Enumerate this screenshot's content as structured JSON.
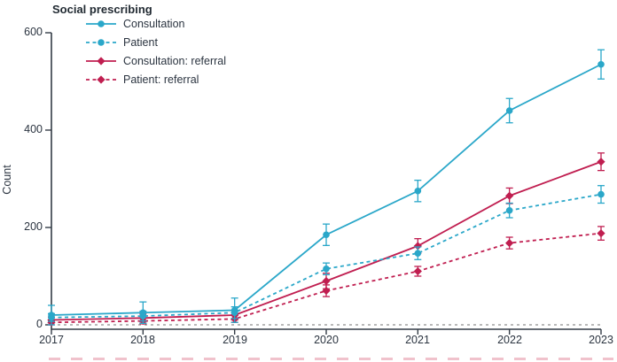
{
  "title": "Social prescribing",
  "axes": {
    "ylabel": "Count",
    "yticks": [
      "0",
      "200",
      "400",
      "600"
    ],
    "xticks": [
      "2017",
      "2018",
      "2019",
      "2020",
      "2021",
      "2022",
      "2023"
    ]
  },
  "colors": {
    "cyan": "#2aa7c9",
    "crimson": "#c01e50",
    "axis": "#343c46",
    "zero_line": "#8f8f8f",
    "text": "#2b3440"
  },
  "chart_data": {
    "type": "line",
    "title": "Social prescribing",
    "xlabel": "",
    "ylabel": "Count",
    "x": [
      2017,
      2018,
      2019,
      2020,
      2021,
      2022,
      2023
    ],
    "ylim": [
      0,
      600
    ],
    "yticks": [
      0,
      200,
      400,
      600
    ],
    "grid": false,
    "legend_position": "top-left",
    "zero_reference_line": true,
    "error_bars": true,
    "series": [
      {
        "name": "Consultation",
        "color": "#2aa7c9",
        "style": "solid",
        "marker": "circle",
        "values": [
          20,
          25,
          30,
          185,
          275,
          440,
          535
        ],
        "errors": [
          20,
          22,
          25,
          22,
          22,
          25,
          30
        ]
      },
      {
        "name": "Patient",
        "color": "#2aa7c9",
        "style": "dashed",
        "marker": "circle",
        "values": [
          15,
          18,
          25,
          115,
          147,
          235,
          268
        ],
        "errors": [
          8,
          10,
          12,
          12,
          13,
          15,
          18
        ]
      },
      {
        "name": "Consultation: referral",
        "color": "#c01e50",
        "style": "solid",
        "marker": "diamond",
        "values": [
          10,
          14,
          20,
          90,
          162,
          265,
          335
        ],
        "errors": [
          6,
          8,
          10,
          16,
          15,
          16,
          18
        ]
      },
      {
        "name": "Patient: referral",
        "color": "#c01e50",
        "style": "dashed",
        "marker": "diamond",
        "values": [
          5,
          8,
          12,
          70,
          110,
          168,
          188
        ],
        "errors": [
          5,
          6,
          7,
          12,
          10,
          12,
          14
        ]
      }
    ]
  }
}
